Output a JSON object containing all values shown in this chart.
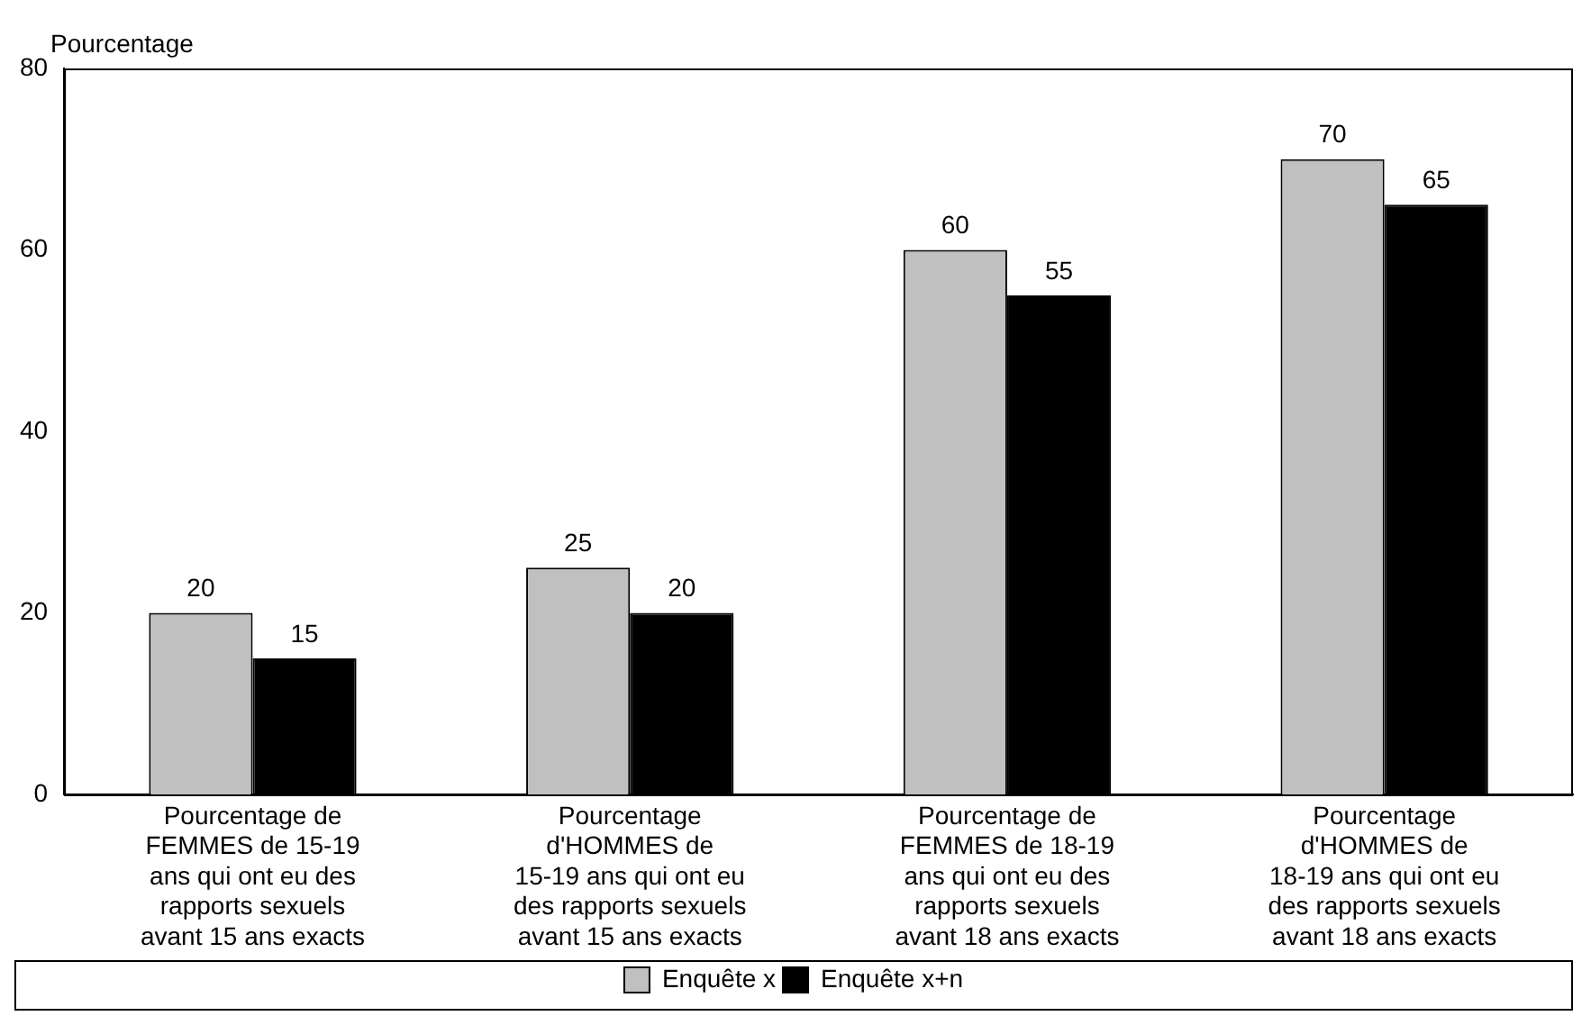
{
  "chart_data": {
    "type": "bar",
    "ylabel": "Pourcentage",
    "categories": [
      "Pourcentage de FEMMES de 15-19 ans qui ont eu des rapports sexuels avant 15 ans exacts",
      "Pourcentage d'HOMMES de 15-19 ans qui ont eu des rapports sexuels avant 15 ans exacts",
      "Pourcentage de FEMMES de 18-19 ans qui ont eu des rapports sexuels avant 18 ans exacts",
      "Pourcentage d'HOMMES de 18-19 ans qui ont eu des rapports sexuels avant 18 ans exacts"
    ],
    "series": [
      {
        "name": "Enquête x",
        "color": "#c0c0c0",
        "values": [
          20,
          25,
          60,
          70
        ]
      },
      {
        "name": "Enquête x+n",
        "color": "#000000",
        "values": [
          15,
          20,
          55,
          65
        ]
      }
    ],
    "ylim": [
      0,
      80
    ],
    "yticks": [
      0,
      20,
      40,
      60,
      80
    ],
    "grid": false,
    "legend": "bottom",
    "data_labels": true
  }
}
